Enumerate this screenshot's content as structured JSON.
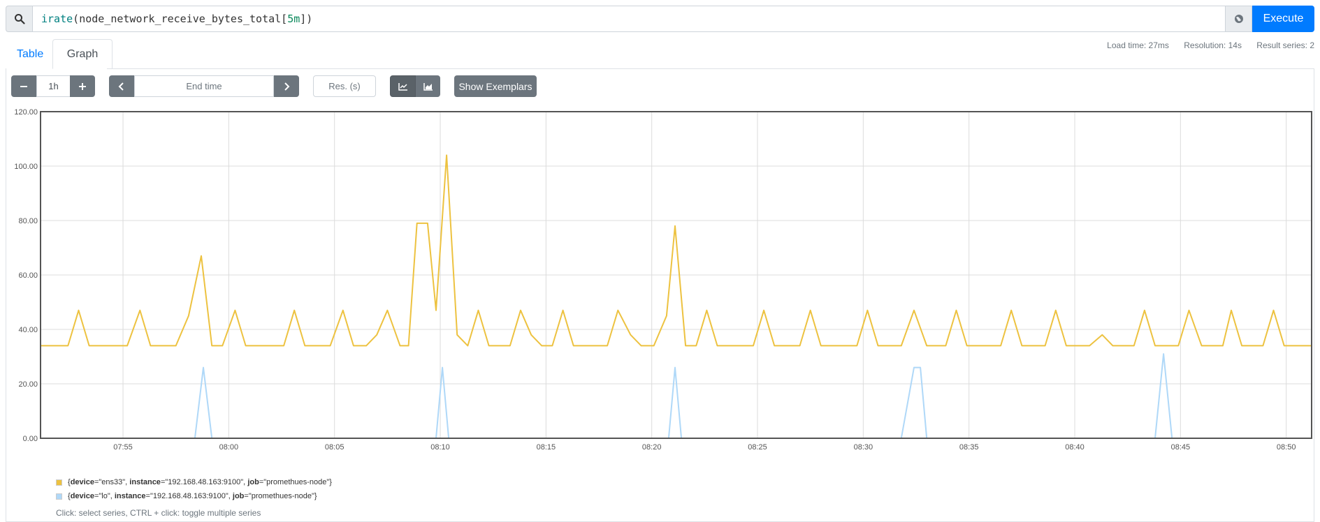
{
  "query": {
    "fn": "irate",
    "metric": "node_network_receive_bytes_total",
    "range": "5m",
    "execute_label": "Execute"
  },
  "tabs": [
    {
      "label": "Table"
    },
    {
      "label": "Graph"
    }
  ],
  "stats": {
    "load_time": "Load time: 27ms",
    "resolution": "Resolution: 14s",
    "result_series": "Result series: 2"
  },
  "controls": {
    "range": "1h",
    "end_time_placeholder": "End time",
    "res_placeholder": "Res. (s)",
    "exemplars_label": "Show Exemplars"
  },
  "legend": {
    "series": [
      {
        "device": "ens33",
        "instance": "192.168.48.163:9100",
        "job": "promethues-node",
        "color": "#edc240"
      },
      {
        "device": "lo",
        "instance": "192.168.48.163:9100",
        "job": "promethues-node",
        "color": "#afd8f8"
      }
    ],
    "hint": "Click: select series, CTRL + click: toggle multiple series"
  },
  "chart_data": {
    "type": "line",
    "y_ticks": [
      "0.00",
      "20.00",
      "40.00",
      "60.00",
      "80.00",
      "100.00",
      "120.00"
    ],
    "ylim": [
      0,
      120
    ],
    "x_ticks": [
      "07:55",
      "08:00",
      "08:05",
      "08:10",
      "08:15",
      "08:20",
      "08:25",
      "08:30",
      "08:35",
      "08:40",
      "08:45",
      "08:50"
    ],
    "x_range_minutes": [
      -3.9,
      56.2
    ],
    "grid": true,
    "series": [
      {
        "name": "{device=\"ens33\", instance=\"192.168.48.163:9100\", job=\"promethues-node\"}",
        "color": "#edc240",
        "points": [
          [
            -3.9,
            34
          ],
          [
            -3.3,
            34
          ],
          [
            -2.6,
            34
          ],
          [
            -2.1,
            47
          ],
          [
            -1.6,
            34
          ],
          [
            -1,
            34
          ],
          [
            -0.4,
            34
          ],
          [
            0.2,
            34
          ],
          [
            0.8,
            47
          ],
          [
            1.3,
            34
          ],
          [
            1.9,
            34
          ],
          [
            2.5,
            34
          ],
          [
            3.1,
            45
          ],
          [
            3.7,
            67
          ],
          [
            4.2,
            34
          ],
          [
            4.7,
            34
          ],
          [
            5.3,
            47
          ],
          [
            5.8,
            34
          ],
          [
            6.4,
            34
          ],
          [
            7,
            34
          ],
          [
            7.6,
            34
          ],
          [
            8.1,
            47
          ],
          [
            8.6,
            34
          ],
          [
            9.2,
            34
          ],
          [
            9.8,
            34
          ],
          [
            10.4,
            47
          ],
          [
            10.9,
            34
          ],
          [
            11.5,
            34
          ],
          [
            12,
            38
          ],
          [
            12.5,
            47
          ],
          [
            13.1,
            34
          ],
          [
            13.5,
            34
          ],
          [
            13.9,
            79
          ],
          [
            14.4,
            79
          ],
          [
            14.8,
            47
          ],
          [
            15.3,
            104
          ],
          [
            15.8,
            38
          ],
          [
            16.3,
            34
          ],
          [
            16.8,
            47
          ],
          [
            17.3,
            34
          ],
          [
            17.8,
            34
          ],
          [
            18.3,
            34
          ],
          [
            18.8,
            47
          ],
          [
            19.3,
            38
          ],
          [
            19.8,
            34
          ],
          [
            20.3,
            34
          ],
          [
            20.8,
            47
          ],
          [
            21.3,
            34
          ],
          [
            21.8,
            34
          ],
          [
            22.4,
            34
          ],
          [
            22.9,
            34
          ],
          [
            23.4,
            47
          ],
          [
            24,
            38
          ],
          [
            24.5,
            34
          ],
          [
            25.1,
            34
          ],
          [
            25.7,
            45
          ],
          [
            26.1,
            78
          ],
          [
            26.6,
            34
          ],
          [
            27.1,
            34
          ],
          [
            27.6,
            47
          ],
          [
            28.1,
            34
          ],
          [
            28.7,
            34
          ],
          [
            29.2,
            34
          ],
          [
            29.8,
            34
          ],
          [
            30.3,
            47
          ],
          [
            30.8,
            34
          ],
          [
            31.4,
            34
          ],
          [
            32,
            34
          ],
          [
            32.5,
            47
          ],
          [
            33,
            34
          ],
          [
            33.6,
            34
          ],
          [
            34.1,
            34
          ],
          [
            34.7,
            34
          ],
          [
            35.2,
            47
          ],
          [
            35.7,
            34
          ],
          [
            36.3,
            34
          ],
          [
            36.8,
            34
          ],
          [
            37.4,
            47
          ],
          [
            38,
            34
          ],
          [
            38.4,
            34
          ],
          [
            38.9,
            34
          ],
          [
            39.4,
            47
          ],
          [
            39.9,
            34
          ],
          [
            40.4,
            34
          ],
          [
            41,
            34
          ],
          [
            41.5,
            34
          ],
          [
            42,
            47
          ],
          [
            42.5,
            34
          ],
          [
            43,
            34
          ],
          [
            43.6,
            34
          ],
          [
            44.1,
            47
          ],
          [
            44.6,
            34
          ],
          [
            45.2,
            34
          ],
          [
            45.7,
            34
          ],
          [
            46.3,
            38
          ],
          [
            46.8,
            34
          ],
          [
            47.3,
            34
          ],
          [
            47.8,
            34
          ],
          [
            48.3,
            47
          ],
          [
            48.8,
            34
          ],
          [
            49.4,
            34
          ],
          [
            49.9,
            34
          ],
          [
            50.4,
            47
          ],
          [
            51,
            34
          ],
          [
            51.5,
            34
          ],
          [
            52,
            34
          ],
          [
            52.4,
            47
          ],
          [
            52.9,
            34
          ],
          [
            53.4,
            34
          ],
          [
            53.9,
            34
          ],
          [
            54.4,
            47
          ],
          [
            54.9,
            34
          ],
          [
            55.4,
            34
          ],
          [
            55.9,
            34
          ],
          [
            56.2,
            34
          ]
        ]
      },
      {
        "name": "{device=\"lo\", instance=\"192.168.48.163:9100\", job=\"promethues-node\"}",
        "color": "#afd8f8",
        "points": [
          [
            -3.9,
            0
          ],
          [
            3.4,
            0
          ],
          [
            3.8,
            26
          ],
          [
            4.2,
            0
          ],
          [
            14.8,
            0
          ],
          [
            15.1,
            26
          ],
          [
            15.4,
            0
          ],
          [
            25.8,
            0
          ],
          [
            26.1,
            26
          ],
          [
            26.4,
            0
          ],
          [
            36.8,
            0
          ],
          [
            37.4,
            26
          ],
          [
            37.7,
            26
          ],
          [
            38,
            0
          ],
          [
            48.8,
            0
          ],
          [
            49.2,
            31
          ],
          [
            49.6,
            0
          ],
          [
            56.2,
            0
          ]
        ]
      }
    ]
  }
}
